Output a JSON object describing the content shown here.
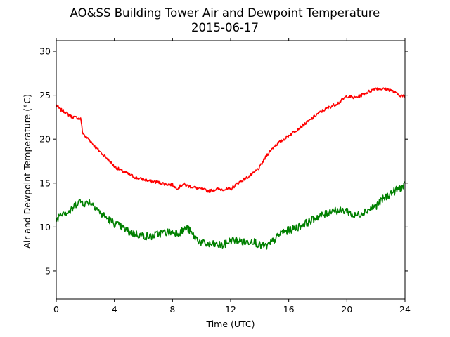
{
  "chart_data": {
    "type": "line",
    "title": "AO&SS Building Tower Air and Dewpoint Temperature",
    "subtitle": "2015-06-17",
    "xlabel": "Time (UTC)",
    "ylabel": "Air and Dewpoint Temperature (°C)",
    "xlim": [
      0,
      24
    ],
    "ylim": [
      1.8,
      31.2
    ],
    "x_ticks": [
      0,
      4,
      8,
      12,
      16,
      20,
      24
    ],
    "y_ticks": [
      5,
      10,
      15,
      20,
      25,
      30
    ],
    "grid": false,
    "legend": "none",
    "series": [
      {
        "color": "#ff0000",
        "x": [
          0,
          0.25,
          0.5,
          0.75,
          1.0,
          1.25,
          1.5,
          1.7,
          1.8,
          2.0,
          2.25,
          2.5,
          2.75,
          3.0,
          3.5,
          4.0,
          4.5,
          5.0,
          5.5,
          6.0,
          6.5,
          7.0,
          7.5,
          8.0,
          8.25,
          8.5,
          8.75,
          9.0,
          9.5,
          10.0,
          10.5,
          11.0,
          11.5,
          12.0,
          12.5,
          13.0,
          13.5,
          14.0,
          14.5,
          15.0,
          15.5,
          16.0,
          16.5,
          17.0,
          17.5,
          18.0,
          18.5,
          19.0,
          19.5,
          20.0,
          20.5,
          21.0,
          21.5,
          22.0,
          22.5,
          23.0,
          23.5,
          24.0
        ],
        "y": [
          23.9,
          23.4,
          23.2,
          22.9,
          22.6,
          22.5,
          22.4,
          22.3,
          20.8,
          20.3,
          20.0,
          19.5,
          19.0,
          18.6,
          17.8,
          16.9,
          16.4,
          16.0,
          15.6,
          15.4,
          15.2,
          15.1,
          14.9,
          14.8,
          14.4,
          14.6,
          14.9,
          14.7,
          14.5,
          14.3,
          14.1,
          14.3,
          14.3,
          14.3,
          15.0,
          15.5,
          16.0,
          16.8,
          18.2,
          19.2,
          19.8,
          20.4,
          21.0,
          21.6,
          22.2,
          22.9,
          23.4,
          23.8,
          24.2,
          24.9,
          24.7,
          25.0,
          25.4,
          25.8,
          25.7,
          25.6,
          25.1,
          24.8
        ]
      },
      {
        "color": "#008000",
        "x": [
          0,
          0.25,
          0.5,
          0.75,
          1.0,
          1.25,
          1.5,
          1.75,
          2.0,
          2.25,
          2.5,
          2.75,
          3.0,
          3.5,
          4.0,
          4.5,
          5.0,
          5.5,
          6.0,
          6.5,
          7.0,
          7.5,
          8.0,
          8.5,
          9.0,
          9.5,
          10.0,
          10.5,
          11.0,
          11.5,
          12.0,
          12.5,
          13.0,
          13.5,
          14.0,
          14.5,
          15.0,
          15.5,
          16.0,
          16.5,
          17.0,
          17.5,
          18.0,
          18.5,
          19.0,
          19.5,
          20.0,
          20.5,
          21.0,
          21.5,
          22.0,
          22.5,
          23.0,
          23.5,
          24.0
        ],
        "y": [
          10.7,
          11.5,
          11.8,
          11.6,
          11.8,
          12.4,
          12.9,
          12.9,
          12.6,
          12.9,
          12.6,
          12.3,
          11.6,
          11.0,
          10.4,
          10.0,
          9.4,
          9.2,
          9.0,
          8.9,
          9.2,
          9.4,
          9.4,
          9.4,
          9.9,
          8.9,
          8.2,
          8.0,
          8.0,
          7.9,
          8.5,
          8.5,
          8.2,
          8.5,
          7.9,
          7.8,
          8.5,
          9.4,
          9.6,
          9.9,
          10.3,
          10.7,
          11.2,
          11.4,
          12.0,
          11.8,
          11.9,
          11.2,
          11.6,
          12.0,
          12.4,
          13.2,
          13.8,
          14.3,
          14.7
        ]
      }
    ]
  }
}
